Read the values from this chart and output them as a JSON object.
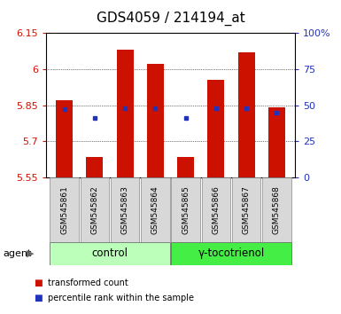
{
  "title": "GDS4059 / 214194_at",
  "samples": [
    "GSM545861",
    "GSM545862",
    "GSM545863",
    "GSM545864",
    "GSM545865",
    "GSM545866",
    "GSM545867",
    "GSM545868"
  ],
  "bar_values": [
    5.87,
    5.635,
    6.08,
    6.02,
    5.635,
    5.955,
    6.07,
    5.84
  ],
  "bar_base": 5.55,
  "percentile_values": [
    47,
    41,
    48,
    48,
    41,
    48,
    48,
    45
  ],
  "percentile_scale_min": 0,
  "percentile_scale_max": 100,
  "ylim": [
    5.55,
    6.15
  ],
  "yticks": [
    5.55,
    5.7,
    5.85,
    6.0,
    6.15
  ],
  "ytick_labels": [
    "5.55",
    "5.7",
    "5.85",
    "6",
    "6.15"
  ],
  "right_yticks": [
    0,
    25,
    50,
    75,
    100
  ],
  "right_ytick_labels": [
    "0",
    "25",
    "50",
    "75",
    "100%"
  ],
  "bar_color": "#cc1100",
  "dot_color": "#2233bb",
  "bar_width": 0.55,
  "groups": [
    {
      "label": "control",
      "samples": [
        0,
        1,
        2,
        3
      ],
      "color": "#bbffbb"
    },
    {
      "label": "γ-tocotrienol",
      "samples": [
        4,
        5,
        6,
        7
      ],
      "color": "#44ee44"
    }
  ],
  "title_fontsize": 11,
  "background_color": "#ffffff",
  "sample_box_color": "#d8d8d8",
  "agent_label": "agent",
  "legend_items": [
    {
      "color": "#cc1100",
      "label": "transformed count"
    },
    {
      "color": "#2233bb",
      "label": "percentile rank within the sample"
    }
  ]
}
